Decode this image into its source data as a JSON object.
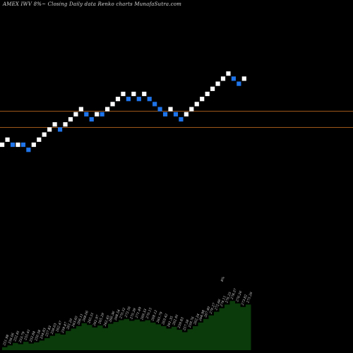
{
  "title": "AMEX  IWV 8%~  Closing Daily data  Renko  charts MunafaSutra.com",
  "colors": {
    "background": "#000000",
    "up_brick": "#ffffff",
    "down_brick": "#1e74e8",
    "reference_line": "#b5651d",
    "volume_fill": "#0b3b0b",
    "volume_text": "#dcdcdc"
  },
  "chart_data": [
    {
      "type": "renko",
      "bricks": [
        {
          "level": 0,
          "dir": "up"
        },
        {
          "level": 1,
          "dir": "up"
        },
        {
          "level": 0,
          "dir": "down"
        },
        {
          "level": 0,
          "dir": "up"
        },
        {
          "level": 0,
          "dir": "down"
        },
        {
          "level": -1,
          "dir": "down"
        },
        {
          "level": 0,
          "dir": "up"
        },
        {
          "level": 1,
          "dir": "up"
        },
        {
          "level": 2,
          "dir": "up"
        },
        {
          "level": 3,
          "dir": "up"
        },
        {
          "level": 4,
          "dir": "up"
        },
        {
          "level": 3,
          "dir": "down"
        },
        {
          "level": 4,
          "dir": "up"
        },
        {
          "level": 5,
          "dir": "up"
        },
        {
          "level": 6,
          "dir": "up"
        },
        {
          "level": 7,
          "dir": "up"
        },
        {
          "level": 6,
          "dir": "down"
        },
        {
          "level": 5,
          "dir": "down"
        },
        {
          "level": 6,
          "dir": "up"
        },
        {
          "level": 6,
          "dir": "down"
        },
        {
          "level": 7,
          "dir": "up"
        },
        {
          "level": 8,
          "dir": "up"
        },
        {
          "level": 9,
          "dir": "up"
        },
        {
          "level": 10,
          "dir": "up"
        },
        {
          "level": 9,
          "dir": "down"
        },
        {
          "level": 10,
          "dir": "up"
        },
        {
          "level": 9,
          "dir": "down"
        },
        {
          "level": 10,
          "dir": "up"
        },
        {
          "level": 9,
          "dir": "down"
        },
        {
          "level": 8,
          "dir": "down"
        },
        {
          "level": 7,
          "dir": "down"
        },
        {
          "level": 6,
          "dir": "down"
        },
        {
          "level": 7,
          "dir": "up"
        },
        {
          "level": 6,
          "dir": "down"
        },
        {
          "level": 5,
          "dir": "down"
        },
        {
          "level": 6,
          "dir": "up"
        },
        {
          "level": 7,
          "dir": "up"
        },
        {
          "level": 8,
          "dir": "up"
        },
        {
          "level": 9,
          "dir": "up"
        },
        {
          "level": 10,
          "dir": "up"
        },
        {
          "level": 11,
          "dir": "up"
        },
        {
          "level": 12,
          "dir": "up"
        },
        {
          "level": 13,
          "dir": "up"
        },
        {
          "level": 14,
          "dir": "up"
        },
        {
          "level": 13,
          "dir": "down"
        },
        {
          "level": 12,
          "dir": "down"
        },
        {
          "level": 13,
          "dir": "up"
        }
      ],
      "reference_levels": [
        6.6,
        3.4
      ]
    },
    {
      "type": "area",
      "label_rotation": -70,
      "values": [
        {
          "v": 5,
          "label": "251.98"
        },
        {
          "v": 8,
          "label": "256.06"
        },
        {
          "v": 12,
          "label": "252.81"
        },
        {
          "v": 10,
          "label": "253.79"
        },
        {
          "v": 14,
          "label": "255.61"
        },
        {
          "v": 11,
          "label": "252.84"
        },
        {
          "v": 13,
          "label": "250.58"
        },
        {
          "v": 16,
          "label": "254.83"
        },
        {
          "v": 20,
          "label": "257.83"
        },
        {
          "v": 24,
          "label": "258.63"
        },
        {
          "v": 28,
          "label": "262.47"
        },
        {
          "v": 26,
          "label": "259.47"
        },
        {
          "v": 32,
          "label": "261.20"
        },
        {
          "v": 36,
          "label": "263.60"
        },
        {
          "v": 40,
          "label": "266.11"
        },
        {
          "v": 45,
          "label": "268.06"
        },
        {
          "v": 42,
          "label": "265.51"
        },
        {
          "v": 38,
          "label": "262.97"
        },
        {
          "v": 41,
          "label": "265.29"
        },
        {
          "v": 37,
          "label": "262.43"
        },
        {
          "v": 44,
          "label": "266.36"
        },
        {
          "v": 47,
          "label": "268.54"
        },
        {
          "v": 50,
          "label": "270.52"
        },
        {
          "v": 52,
          "label": "272.56"
        },
        {
          "v": 49,
          "label": "270.39"
        },
        {
          "v": 51,
          "label": "271.49"
        },
        {
          "v": 48,
          "label": "269.33"
        },
        {
          "v": 50,
          "label": "270.15"
        },
        {
          "v": 46,
          "label": "268.12"
        },
        {
          "v": 43,
          "label": "265.79"
        },
        {
          "v": 40,
          "label": "263.42"
        },
        {
          "v": 36,
          "label": "261.35"
        },
        {
          "v": 39,
          "label": "262.91"
        },
        {
          "v": 34,
          "label": "259.83"
        },
        {
          "v": 30,
          "label": "257.58"
        },
        {
          "v": 35,
          "label": "259.76"
        },
        {
          "v": 40,
          "label": "262.24"
        },
        {
          "v": 46,
          "label": "264.98"
        },
        {
          "v": 52,
          "label": "267.40"
        },
        {
          "v": 58,
          "label": "270.27"
        },
        {
          "v": 64,
          "label": "272.66"
        },
        {
          "v": 70,
          "label": "274.11"
        },
        {
          "v": 76,
          "label": "276.25"
        },
        {
          "v": 82,
          "label": "278.37"
        },
        {
          "v": 78,
          "label": "276.26"
        },
        {
          "v": 72,
          "label": "273.82"
        },
        {
          "v": 76,
          "label": "275.26"
        }
      ],
      "peak_annotation": "8%"
    }
  ]
}
